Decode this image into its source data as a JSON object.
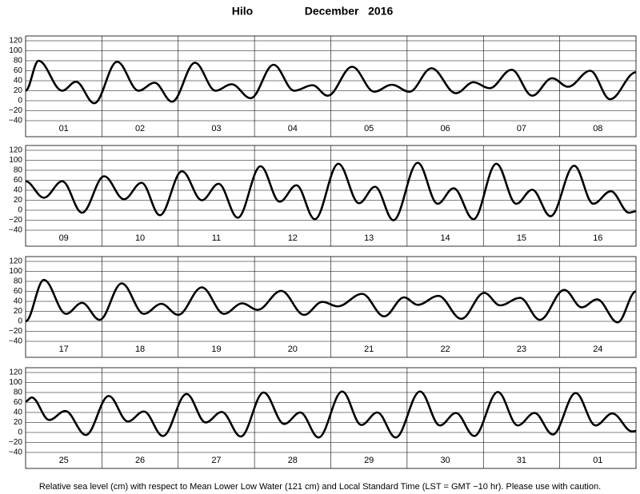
{
  "header": {
    "station": "Hilo",
    "month": "December   2016"
  },
  "footer": "Relative sea level (cm) with respect to Mean Lower Low Water (121 cm) and Local Standard Time (LST = GMT −10 hr). Please use with caution.",
  "chart_data": [
    {
      "type": "line",
      "categories": [
        "01",
        "02",
        "03",
        "04",
        "05",
        "06",
        "07",
        "08"
      ],
      "xlim": [
        0,
        8
      ],
      "ylim": [
        -40,
        120
      ],
      "yticks": [
        {
          "value": -40,
          "label": "−40"
        },
        {
          "value": -20,
          "label": "−20"
        },
        0,
        20,
        40,
        60,
        80,
        100,
        120
      ],
      "x": [
        0,
        0.17,
        0.48,
        0.66,
        0.9,
        1.2,
        1.48,
        1.69,
        1.92,
        2.22,
        2.49,
        2.7,
        2.95,
        3.25,
        3.52,
        3.76,
        3.96,
        4.28,
        4.57,
        4.8,
        5.03,
        5.32,
        5.64,
        5.87,
        6.08,
        6.37,
        6.64,
        6.9,
        7.11,
        7.4,
        7.66,
        8
      ],
      "series": [
        {
          "color": "#000000",
          "values": [
            20,
            80,
            20,
            38,
            -5,
            78,
            20,
            36,
            -2,
            76,
            20,
            33,
            5,
            72,
            20,
            31,
            10,
            68,
            18,
            32,
            18,
            65,
            15,
            37,
            25,
            62,
            10,
            45,
            28,
            60,
            3,
            57
          ]
        }
      ]
    },
    {
      "type": "line",
      "categories": [
        "09",
        "10",
        "11",
        "12",
        "13",
        "14",
        "15",
        "16"
      ],
      "xlim": [
        0,
        8
      ],
      "ylim": [
        -40,
        120
      ],
      "yticks": [
        {
          "value": -40,
          "label": "−40"
        },
        {
          "value": -20,
          "label": "−20"
        },
        0,
        20,
        40,
        60,
        80,
        100,
        120
      ],
      "x": [
        0,
        0.24,
        0.48,
        0.74,
        1.03,
        1.29,
        1.52,
        1.76,
        2.05,
        2.31,
        2.53,
        2.78,
        3.08,
        3.33,
        3.55,
        3.79,
        4.1,
        4.37,
        4.58,
        4.82,
        5.14,
        5.4,
        5.61,
        5.87,
        6.17,
        6.43,
        6.64,
        6.88,
        7.19,
        7.44,
        7.67,
        7.91,
        8
      ],
      "series": [
        {
          "color": "#000000",
          "values": [
            58,
            25,
            58,
            -5,
            68,
            22,
            55,
            -10,
            78,
            20,
            53,
            -15,
            88,
            17,
            50,
            -18,
            93,
            14,
            47,
            -20,
            95,
            13,
            44,
            -18,
            93,
            13,
            41,
            -12,
            89,
            13,
            38,
            -5,
            -2
          ]
        }
      ]
    },
    {
      "type": "line",
      "categories": [
        "17",
        "18",
        "19",
        "20",
        "21",
        "22",
        "23",
        "24"
      ],
      "xlim": [
        0,
        8
      ],
      "ylim": [
        -40,
        120
      ],
      "yticks": [
        {
          "value": -40,
          "label": "−40"
        },
        {
          "value": -20,
          "label": "−20"
        },
        0,
        20,
        40,
        60,
        80,
        100,
        120
      ],
      "x": [
        0,
        0.24,
        0.53,
        0.74,
        0.97,
        1.26,
        1.55,
        1.78,
        2,
        2.31,
        2.6,
        2.84,
        3.04,
        3.35,
        3.65,
        3.89,
        4.09,
        4.41,
        4.7,
        4.96,
        5.14,
        5.41,
        5.71,
        6.01,
        6.22,
        6.48,
        6.74,
        7.06,
        7.29,
        7.49,
        7.76,
        8
      ],
      "series": [
        {
          "color": "#000000",
          "values": [
            0,
            83,
            15,
            37,
            3,
            76,
            15,
            35,
            13,
            68,
            15,
            36,
            23,
            61,
            13,
            39,
            30,
            55,
            10,
            48,
            33,
            51,
            5,
            57,
            32,
            47,
            3,
            63,
            28,
            44,
            -2,
            60
          ]
        }
      ]
    },
    {
      "type": "line",
      "categories": [
        "25",
        "26",
        "27",
        "28",
        "29",
        "30",
        "31",
        "01"
      ],
      "xlim": [
        0,
        8
      ],
      "ylim": [
        -40,
        120
      ],
      "yticks": [
        {
          "value": -40,
          "label": "−40"
        },
        {
          "value": -20,
          "label": "−20"
        },
        0,
        20,
        40,
        60,
        80,
        100,
        120
      ],
      "x": [
        0,
        0.08,
        0.31,
        0.52,
        0.79,
        1.09,
        1.34,
        1.55,
        1.8,
        2.11,
        2.36,
        2.57,
        2.82,
        3.12,
        3.39,
        3.6,
        3.84,
        4.15,
        4.4,
        4.61,
        4.85,
        5.17,
        5.43,
        5.64,
        5.88,
        6.19,
        6.45,
        6.67,
        6.91,
        7.21,
        7.47,
        7.69,
        7.95,
        8
      ],
      "series": [
        {
          "color": "#000000",
          "values": [
            62,
            70,
            25,
            43,
            -5,
            73,
            22,
            42,
            -7,
            77,
            20,
            41,
            -8,
            80,
            17,
            40,
            -10,
            82,
            15,
            40,
            -10,
            82,
            14,
            39,
            -7,
            81,
            14,
            39,
            -4,
            79,
            14,
            38,
            2,
            3
          ]
        }
      ]
    }
  ]
}
